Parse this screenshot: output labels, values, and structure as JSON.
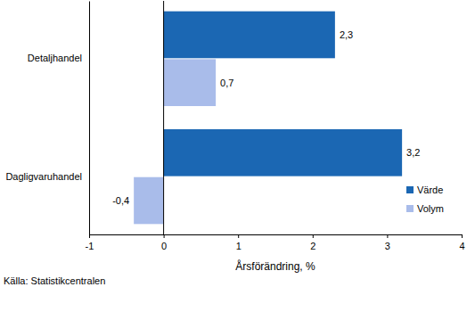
{
  "chart_data": {
    "type": "bar",
    "orientation": "horizontal",
    "categories": [
      "Detaljhandel",
      "Dagligvaruhandel"
    ],
    "series": [
      {
        "name": "Värde",
        "color": "#1b67b3",
        "values": [
          2.3,
          3.2
        ],
        "value_labels": [
          "2,3",
          "3,2"
        ]
      },
      {
        "name": "Volym",
        "color": "#a9bcea",
        "values": [
          0.7,
          -0.4
        ],
        "value_labels": [
          "0,7",
          "-0,4"
        ]
      }
    ],
    "xlim": [
      -1,
      4
    ],
    "xticks": [
      -1,
      0,
      1,
      2,
      3,
      4
    ],
    "x_label": "Årsförändring, %",
    "source": "Källa: Statistikcentralen",
    "legend": "right",
    "data_labels": true,
    "grid": false
  }
}
